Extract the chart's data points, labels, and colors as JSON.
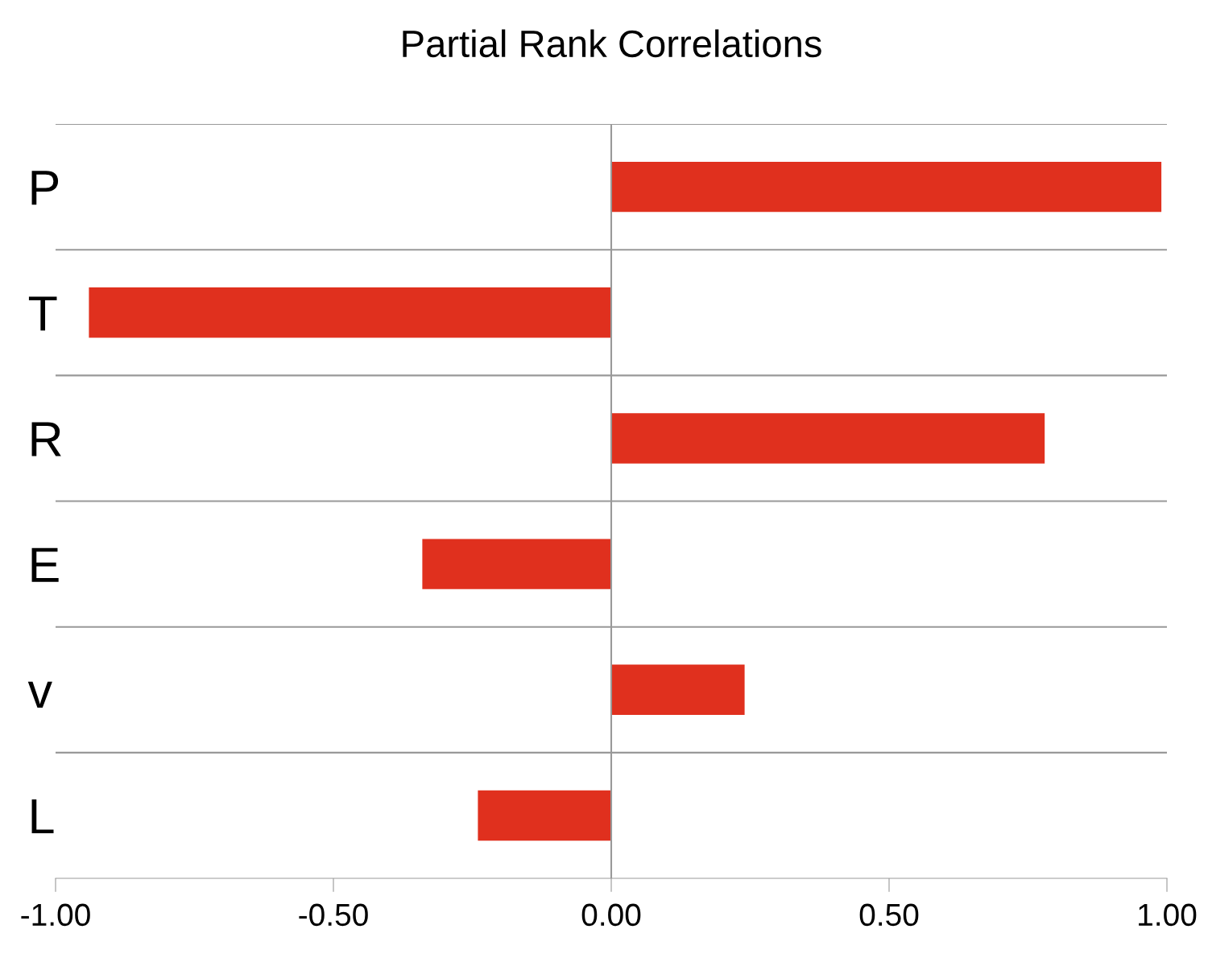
{
  "chart_data": {
    "type": "bar",
    "orientation": "horizontal",
    "title": "Partial Rank Correlations",
    "categories": [
      "P",
      "T",
      "R",
      "E",
      "v",
      "L"
    ],
    "values": [
      0.99,
      -0.94,
      0.78,
      -0.34,
      0.24,
      -0.24
    ],
    "color": "#e0301e",
    "xlim": [
      -1.0,
      1.0
    ],
    "xticks": [
      {
        "value": -1.0,
        "label": "-1.00"
      },
      {
        "value": -0.5,
        "label": "-0.50"
      },
      {
        "value": 0.0,
        "label": "0.00"
      },
      {
        "value": 0.5,
        "label": "0.50"
      },
      {
        "value": 1.0,
        "label": "1.00"
      }
    ],
    "grid": "y",
    "ref_lines": [
      {
        "axis": "x",
        "value": 0.0,
        "color": "#999999"
      }
    ]
  }
}
